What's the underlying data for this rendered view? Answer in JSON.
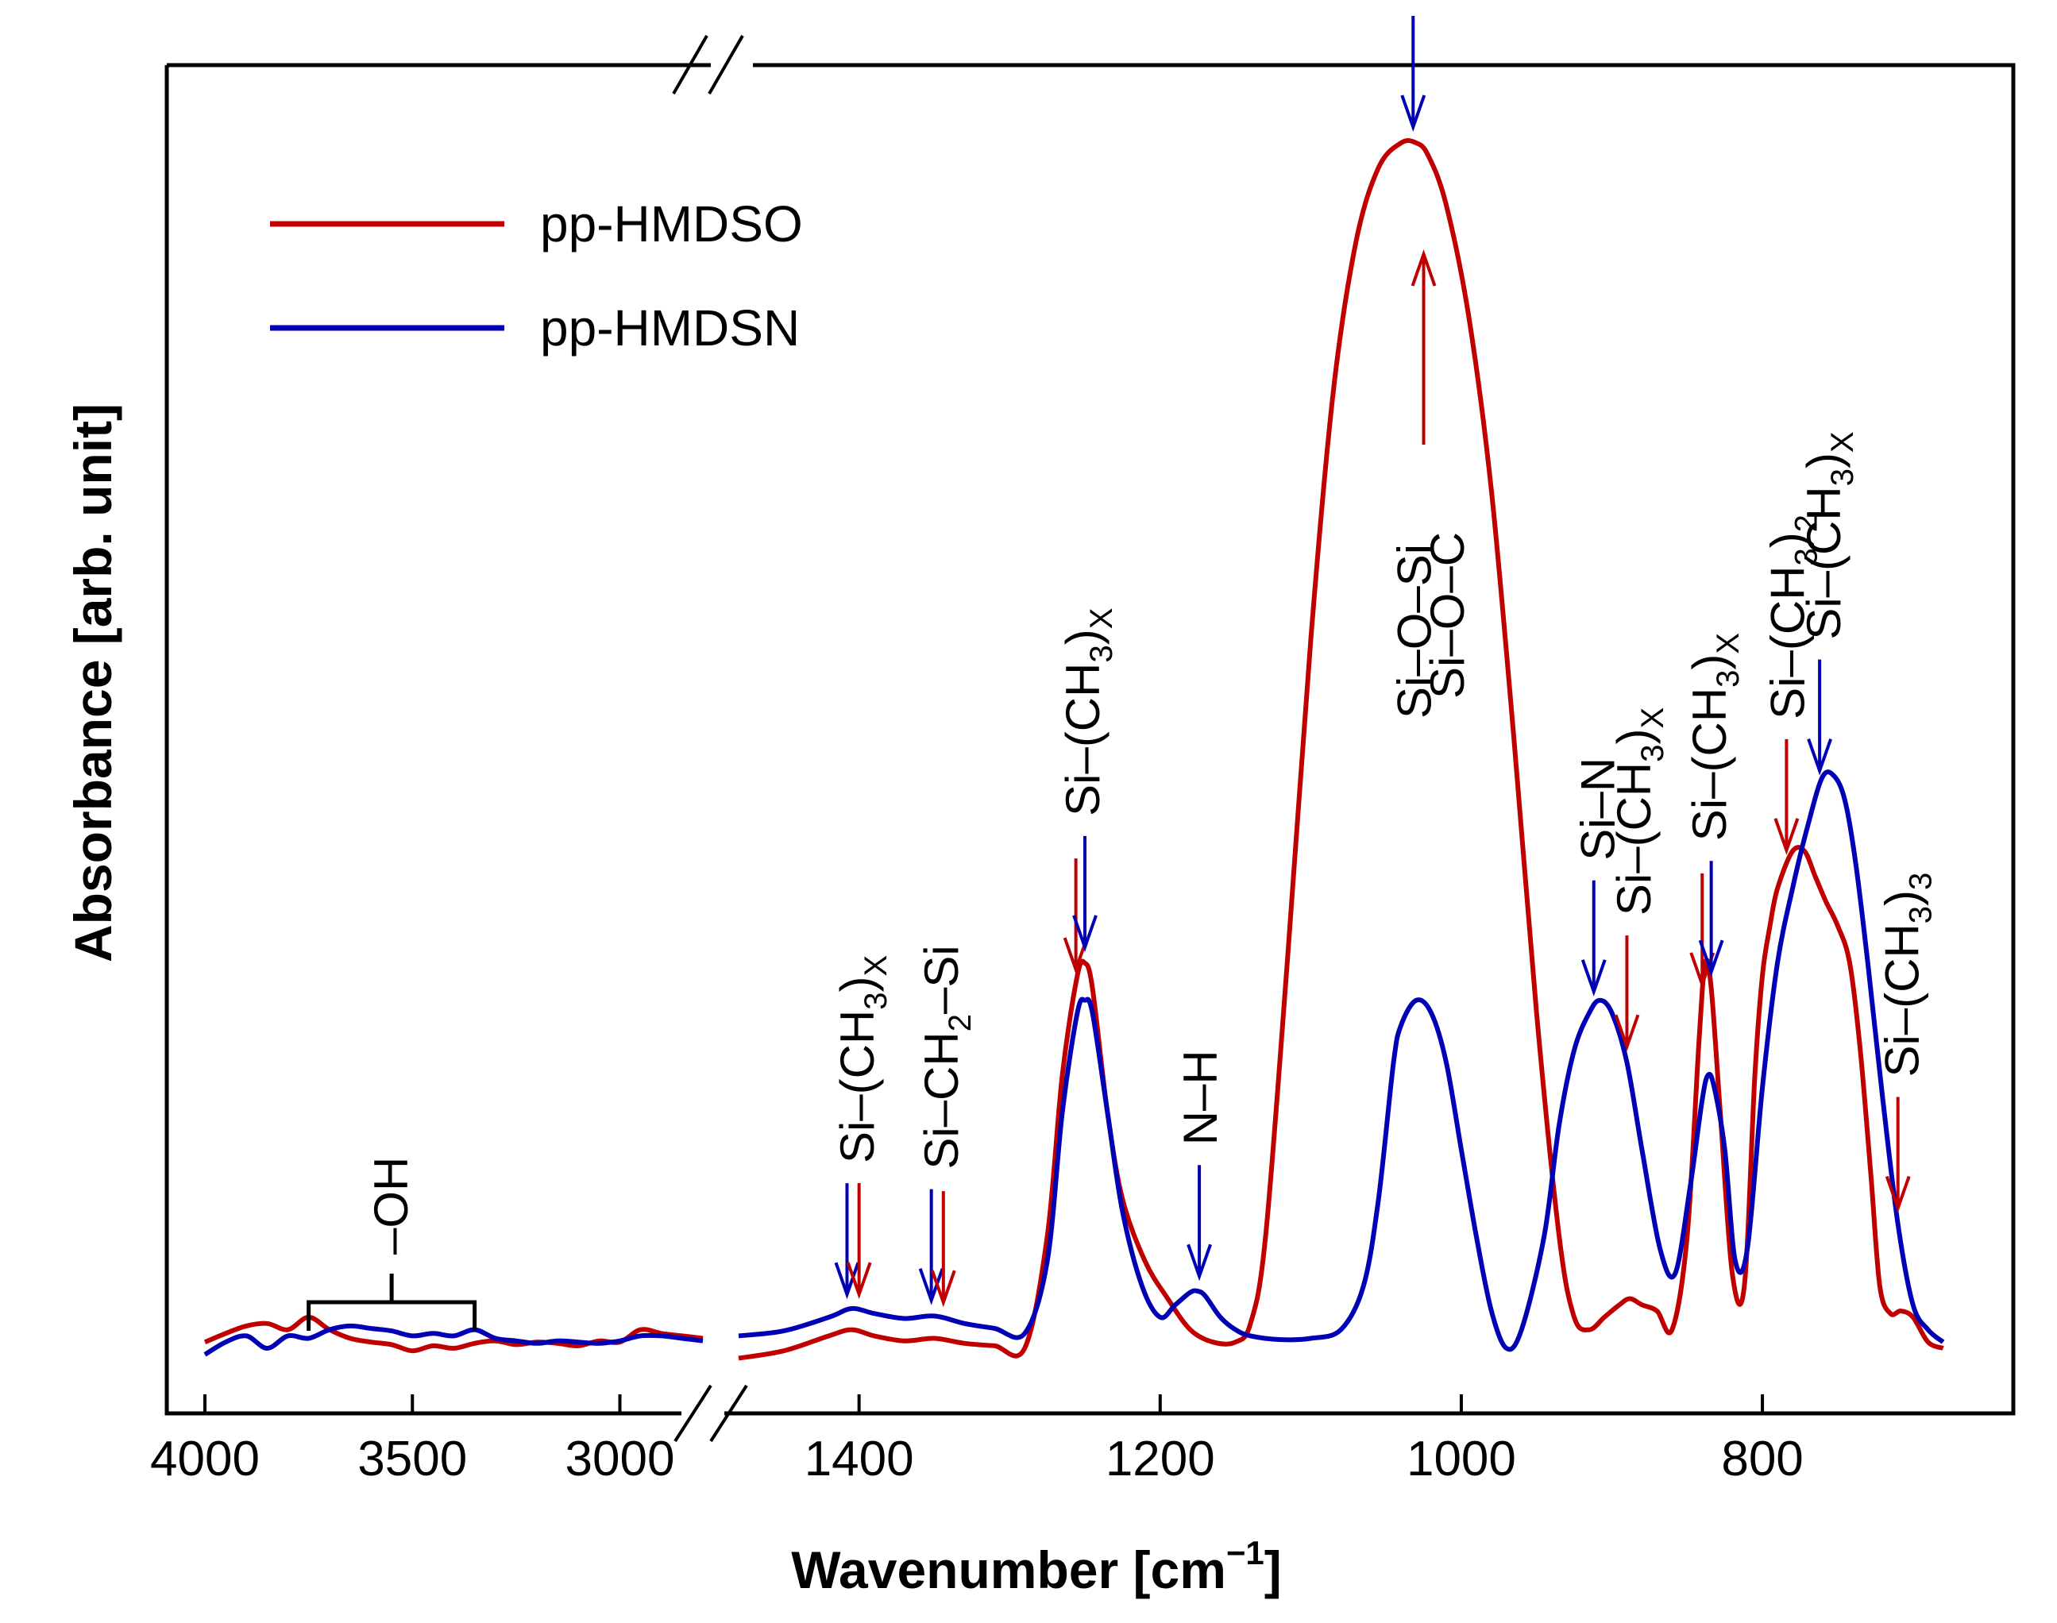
{
  "chart_data": {
    "type": "line",
    "title": "",
    "xlabel": "Wavenumber [cm",
    "xlabel_sup": "−1",
    "xlabel_end": "]",
    "ylabel": "Absorbance [arb. unit]",
    "x_reversed": true,
    "x_segments": [
      {
        "range": [
          4000,
          2800
        ],
        "ticks": [
          4000,
          3500,
          3000
        ]
      },
      {
        "range": [
          1480,
          665
        ],
        "ticks": [
          1400,
          1200,
          1000,
          800
        ]
      }
    ],
    "ylim": [
      0,
      1
    ],
    "colors": {
      "pp-HMDSO": "#c00000",
      "pp-HMDSN": "#0000b4",
      "axis": "#000000"
    },
    "series": [
      {
        "name": "pp-HMDSO",
        "segments": [
          {
            "x": [
              4000,
              3950,
              3900,
              3850,
              3800,
              3750,
              3700,
              3650,
              3600,
              3550,
              3500,
              3450,
              3400,
              3350,
              3300,
              3250,
              3200,
              3150,
              3100,
              3050,
              3000,
              2950,
              2900,
              2850,
              2800
            ],
            "y": [
              0.035,
              0.042,
              0.048,
              0.05,
              0.045,
              0.055,
              0.045,
              0.038,
              0.035,
              0.033,
              0.028,
              0.032,
              0.03,
              0.034,
              0.036,
              0.033,
              0.035,
              0.034,
              0.032,
              0.036,
              0.035,
              0.045,
              0.042,
              0.04,
              0.038
            ]
          },
          {
            "x": [
              1480,
              1450,
              1420,
              1405,
              1390,
              1370,
              1350,
              1330,
              1310,
              1290,
              1275,
              1265,
              1255,
              1250,
              1245,
              1235,
              1225,
              1210,
              1195,
              1180,
              1165,
              1150,
              1140,
              1130,
              1115,
              1100,
              1085,
              1070,
              1055,
              1040,
              1030,
              1022,
              1010,
              995,
              980,
              965,
              950,
              935,
              925,
              915,
              905,
              895,
              888,
              880,
              870,
              860,
              850,
              842,
              838,
              834,
              828,
              820,
              812,
              805,
              800,
              795,
              790,
              780,
              772,
              765,
              758,
              750,
              742,
              735,
              728,
              722,
              715,
              708,
              700,
              690,
              680
            ],
            "y": [
              0.022,
              0.028,
              0.04,
              0.045,
              0.04,
              0.036,
              0.038,
              0.034,
              0.032,
              0.03,
              0.12,
              0.25,
              0.33,
              0.34,
              0.32,
              0.22,
              0.15,
              0.1,
              0.07,
              0.045,
              0.035,
              0.035,
              0.05,
              0.12,
              0.35,
              0.6,
              0.8,
              0.92,
              0.98,
              1.0,
              1.0,
              0.99,
              0.95,
              0.86,
              0.72,
              0.52,
              0.3,
              0.12,
              0.055,
              0.045,
              0.055,
              0.065,
              0.07,
              0.065,
              0.06,
              0.045,
              0.12,
              0.28,
              0.34,
              0.32,
              0.22,
              0.09,
              0.08,
              0.25,
              0.33,
              0.37,
              0.4,
              0.43,
              0.43,
              0.41,
              0.39,
              0.37,
              0.34,
              0.27,
              0.17,
              0.08,
              0.058,
              0.06,
              0.055,
              0.035,
              0.03
            ]
          }
        ]
      },
      {
        "name": "pp-HMDSN",
        "segments": [
          {
            "x": [
              4000,
              3950,
              3900,
              3850,
              3800,
              3750,
              3700,
              3650,
              3600,
              3550,
              3500,
              3450,
              3400,
              3350,
              3300,
              3250,
              3200,
              3150,
              3100,
              3050,
              3000,
              2950,
              2900,
              2850,
              2800
            ],
            "y": [
              0.025,
              0.035,
              0.04,
              0.03,
              0.04,
              0.038,
              0.045,
              0.048,
              0.046,
              0.044,
              0.04,
              0.042,
              0.04,
              0.045,
              0.038,
              0.036,
              0.034,
              0.036,
              0.035,
              0.034,
              0.036,
              0.04,
              0.04,
              0.038,
              0.036
            ]
          },
          {
            "x": [
              1480,
              1450,
              1420,
              1405,
              1390,
              1370,
              1350,
              1330,
              1310,
              1290,
              1275,
              1265,
              1255,
              1250,
              1245,
              1235,
              1225,
              1212,
              1200,
              1190,
              1180,
              1175,
              1170,
              1160,
              1150,
              1140,
              1120,
              1100,
              1080,
              1065,
              1055,
              1045,
              1040,
              1030,
              1020,
              1010,
              1000,
              990,
              980,
              970,
              960,
              945,
              935,
              925,
              915,
              908,
              900,
              890,
              880,
              868,
              858,
              848,
              840,
              836,
              832,
              825,
              818,
              810,
              800,
              790,
              780,
              770,
              760,
              752,
              745,
              738,
              730,
              720,
              710,
              700,
              690,
              680
            ],
            "y": [
              0.04,
              0.044,
              0.055,
              0.062,
              0.058,
              0.054,
              0.056,
              0.05,
              0.046,
              0.042,
              0.1,
              0.22,
              0.3,
              0.31,
              0.3,
              0.22,
              0.14,
              0.08,
              0.055,
              0.065,
              0.075,
              0.076,
              0.072,
              0.055,
              0.045,
              0.04,
              0.037,
              0.038,
              0.045,
              0.08,
              0.15,
              0.26,
              0.29,
              0.31,
              0.3,
              0.26,
              0.19,
              0.12,
              0.06,
              0.03,
              0.045,
              0.12,
              0.21,
              0.27,
              0.3,
              0.31,
              0.3,
              0.26,
              0.19,
              0.11,
              0.09,
              0.16,
              0.23,
              0.25,
              0.24,
              0.19,
              0.1,
              0.11,
              0.24,
              0.34,
              0.4,
              0.45,
              0.49,
              0.49,
              0.47,
              0.42,
              0.34,
              0.23,
              0.13,
              0.065,
              0.045,
              0.035
            ]
          }
        ]
      }
    ],
    "legend": {
      "position": "top-left",
      "entries": [
        "pp-HMDSO",
        "pp-HMDSN"
      ]
    },
    "annotations": [
      {
        "main": "Si–(CH",
        "sub": "3",
        "end": ")",
        "end_sub": "X",
        "x": 1402,
        "arrows": [
          {
            "x": 1408,
            "color": "blue"
          },
          {
            "x": 1400,
            "color": "red"
          }
        ]
      },
      {
        "main": "Si–CH",
        "sub": "2",
        "end": "–Si",
        "end_sub": "",
        "x": 1346,
        "arrows": [
          {
            "x": 1352,
            "color": "blue"
          },
          {
            "x": 1344,
            "color": "red"
          }
        ]
      },
      {
        "main": "Si–(CH",
        "sub": "3",
        "end": ")",
        "end_sub": "X",
        "x": 1252,
        "arrows": [
          {
            "x": 1256,
            "color": "red"
          },
          {
            "x": 1250,
            "color": "blue"
          }
        ]
      },
      {
        "main": "N–H",
        "sub": "",
        "end": "",
        "end_sub": "",
        "x": 1174,
        "arrows": [
          {
            "x": 1174,
            "color": "blue"
          }
        ]
      },
      {
        "main": "Si–O–Si",
        "sub": "",
        "end": "",
        "end_sub": "",
        "x": 1032,
        "arrows": [
          {
            "x": 1032,
            "color": "blue"
          }
        ]
      },
      {
        "main": "Si–O–C",
        "sub": "",
        "end": "",
        "end_sub": "",
        "x": 1010,
        "arrows": [
          {
            "x": 1025,
            "color": "red",
            "up": true
          }
        ]
      },
      {
        "main": "Si–N",
        "sub": "",
        "end": "",
        "end_sub": "",
        "x": 910,
        "arrows": [
          {
            "x": 912,
            "color": "blue"
          }
        ]
      },
      {
        "main": "Si–(CH",
        "sub": "3",
        "end": ")",
        "end_sub": "X",
        "x": 886,
        "arrows": [
          {
            "x": 890,
            "color": "red"
          }
        ]
      },
      {
        "main": "Si–(CH",
        "sub": "3",
        "end": ")",
        "end_sub": "X",
        "x": 836,
        "arrows": [
          {
            "x": 840,
            "color": "red"
          },
          {
            "x": 834,
            "color": "blue"
          }
        ]
      },
      {
        "main": "Si–(CH",
        "sub": "3",
        "end": ")",
        "end_sub": "2",
        "x": 784,
        "arrows": [
          {
            "x": 784,
            "color": "red"
          }
        ]
      },
      {
        "main": "Si–(CH",
        "sub": "3",
        "end": ")",
        "end_sub": "X",
        "x": 760,
        "arrows": [
          {
            "x": 762,
            "color": "blue"
          }
        ]
      },
      {
        "main": "Si–(CH",
        "sub": "3",
        "end": ")",
        "end_sub": "3",
        "x": 708,
        "arrows": [
          {
            "x": 710,
            "color": "red"
          }
        ]
      },
      {
        "main": "–OH",
        "sub": "",
        "end": "",
        "end_sub": "",
        "x": 3550,
        "bracket": [
          3750,
          3350
        ]
      }
    ]
  }
}
